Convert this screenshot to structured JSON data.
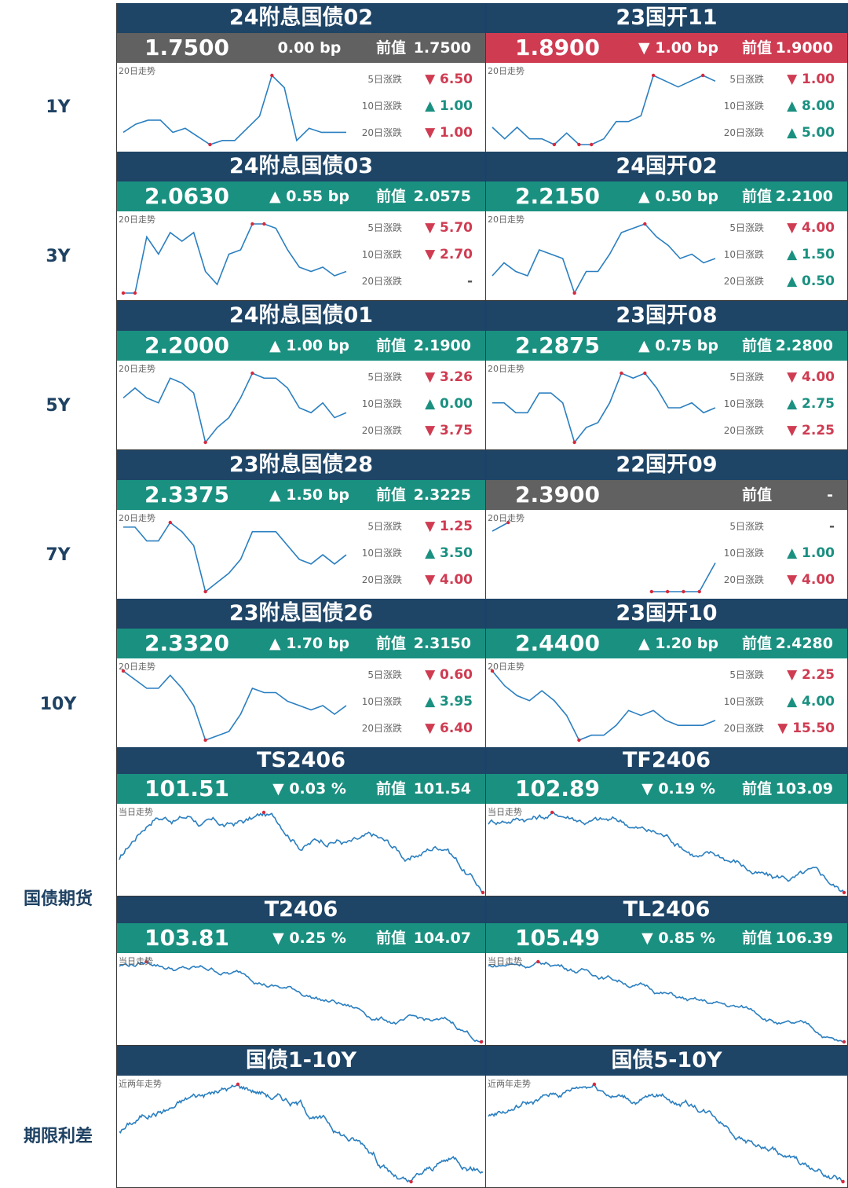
{
  "row_labels": [
    "1Y",
    "3Y",
    "5Y",
    "7Y",
    "10Y",
    "国债期货",
    "期限利差"
  ],
  "stats_labels": [
    "5日涨跌",
    "10日涨跌",
    "20日涨跌"
  ],
  "bond_cap": "20日走势",
  "fut_cap": "当日走势",
  "spr_cap": "近两年走势",
  "prev_label": "前值",
  "bonds": [
    {
      "title": "24附息国债02",
      "value": "1.7500",
      "change": "0.00 bp",
      "dir": "flat",
      "band": "gray",
      "prev": "1.7500",
      "stats": [
        {
          "v": "▼ 6.50",
          "d": "down"
        },
        {
          "v": "▲ 1.00",
          "d": "up"
        },
        {
          "v": "▼ 1.00",
          "d": "down"
        }
      ]
    },
    {
      "title": "23国开11",
      "value": "1.8900",
      "change": "▼ 1.00 bp",
      "dir": "down",
      "band": "red",
      "prev": "1.9000",
      "stats": [
        {
          "v": "▼ 1.00",
          "d": "down"
        },
        {
          "v": "▲ 8.00",
          "d": "up"
        },
        {
          "v": "▲ 5.00",
          "d": "up"
        }
      ]
    },
    {
      "title": "24附息国债03",
      "value": "2.0630",
      "change": "▲ 0.55 bp",
      "dir": "up",
      "band": "teal",
      "prev": "2.0575",
      "stats": [
        {
          "v": "▼ 5.70",
          "d": "down"
        },
        {
          "v": "▼ 2.70",
          "d": "down"
        },
        {
          "v": "-",
          "d": "flat"
        }
      ]
    },
    {
      "title": "24国开02",
      "value": "2.2150",
      "change": "▲ 0.50 bp",
      "dir": "up",
      "band": "teal",
      "prev": "2.2100",
      "stats": [
        {
          "v": "▼ 4.00",
          "d": "down"
        },
        {
          "v": "▲ 1.50",
          "d": "up"
        },
        {
          "v": "▲ 0.50",
          "d": "up"
        }
      ]
    },
    {
      "title": "24附息国债01",
      "value": "2.2000",
      "change": "▲ 1.00 bp",
      "dir": "up",
      "band": "teal",
      "prev": "2.1900",
      "stats": [
        {
          "v": "▼ 3.26",
          "d": "down"
        },
        {
          "v": "▲ 0.00",
          "d": "up"
        },
        {
          "v": "▼ 3.75",
          "d": "down"
        }
      ]
    },
    {
      "title": "23国开08",
      "value": "2.2875",
      "change": "▲ 0.75 bp",
      "dir": "up",
      "band": "teal",
      "prev": "2.2800",
      "stats": [
        {
          "v": "▼ 4.00",
          "d": "down"
        },
        {
          "v": "▲ 2.75",
          "d": "up"
        },
        {
          "v": "▼ 2.25",
          "d": "down"
        }
      ]
    },
    {
      "title": "23附息国债28",
      "value": "2.3375",
      "change": "▲ 1.50 bp",
      "dir": "up",
      "band": "teal",
      "prev": "2.3225",
      "stats": [
        {
          "v": "▼ 1.25",
          "d": "down"
        },
        {
          "v": "▲ 3.50",
          "d": "up"
        },
        {
          "v": "▼ 4.00",
          "d": "down"
        }
      ]
    },
    {
      "title": "22国开09",
      "value": "2.3900",
      "change": "",
      "dir": "flat",
      "band": "gray",
      "prev": "-",
      "stats": [
        {
          "v": "-",
          "d": "flat"
        },
        {
          "v": "▲ 1.00",
          "d": "up"
        },
        {
          "v": "▼ 4.00",
          "d": "down"
        }
      ]
    },
    {
      "title": "23附息国债26",
      "value": "2.3320",
      "change": "▲ 1.70 bp",
      "dir": "up",
      "band": "teal",
      "prev": "2.3150",
      "stats": [
        {
          "v": "▼ 0.60",
          "d": "down"
        },
        {
          "v": "▲ 3.95",
          "d": "up"
        },
        {
          "v": "▼ 6.40",
          "d": "down"
        }
      ]
    },
    {
      "title": "23国开10",
      "value": "2.4400",
      "change": "▲ 1.20 bp",
      "dir": "up",
      "band": "teal",
      "prev": "2.4280",
      "stats": [
        {
          "v": "▼ 2.25",
          "d": "down"
        },
        {
          "v": "▲ 4.00",
          "d": "up"
        },
        {
          "v": "▼ 15.50",
          "d": "down"
        }
      ]
    }
  ],
  "futures": [
    {
      "title": "TS2406",
      "value": "101.51",
      "change": "▼ 0.03 %",
      "band": "teal",
      "prev": "101.54"
    },
    {
      "title": "TF2406",
      "value": "102.89",
      "change": "▼ 0.19 %",
      "band": "teal",
      "prev": "103.09"
    },
    {
      "title": "T2406",
      "value": "103.81",
      "change": "▼ 0.25 %",
      "band": "teal",
      "prev": "104.07"
    },
    {
      "title": "TL2406",
      "value": "105.49",
      "change": "▼ 0.85 %",
      "band": "teal",
      "prev": "106.39"
    }
  ],
  "spreads": [
    {
      "title": "国债1-10Y"
    },
    {
      "title": "国债5-10Y"
    }
  ],
  "chart_data": [
    {
      "type": "line",
      "title": "24附息国债02",
      "x_label_text": "20日走势",
      "values": [
        12,
        14,
        15,
        15,
        12,
        13,
        11,
        9,
        10,
        10,
        13,
        16,
        26,
        23,
        10,
        13,
        12,
        12,
        12
      ],
      "markers": "extrema"
    },
    {
      "type": "line",
      "title": "23国开11",
      "values": [
        12,
        10,
        12,
        10,
        10,
        9,
        11,
        9,
        9,
        10,
        13,
        13,
        14,
        21,
        20,
        19,
        20,
        21,
        20
      ],
      "markers": "extrema"
    },
    {
      "type": "line",
      "title": "24附息国债03",
      "values": [
        5,
        5,
        18,
        14,
        19,
        17,
        19,
        10,
        7,
        14,
        15,
        21,
        21,
        20,
        15,
        11,
        10,
        11,
        9,
        10
      ],
      "markers": "extrema"
    },
    {
      "type": "line",
      "title": "24国开02",
      "values": [
        9,
        12,
        10,
        9,
        15,
        14,
        13,
        5,
        10,
        10,
        14,
        19,
        20,
        21,
        18,
        16,
        13,
        14,
        12,
        13
      ],
      "markers": "extrema"
    },
    {
      "type": "line",
      "title": "24附息国债01",
      "values": [
        16,
        18,
        16,
        15,
        20,
        19,
        17,
        7,
        10,
        12,
        16,
        21,
        20,
        20,
        18,
        14,
        13,
        15,
        12,
        13
      ],
      "markers": "extrema"
    },
    {
      "type": "line",
      "title": "23国开08",
      "values": [
        15,
        15,
        13,
        13,
        17,
        17,
        15,
        7,
        10,
        11,
        15,
        21,
        20,
        21,
        18,
        14,
        14,
        15,
        13,
        14
      ],
      "markers": "extrema"
    },
    {
      "type": "line",
      "title": "23附息国债28",
      "values": [
        20,
        20,
        17,
        17,
        21,
        19,
        16,
        6,
        8,
        10,
        13,
        19,
        19,
        19,
        16,
        13,
        12,
        14,
        12,
        14
      ],
      "markers": "extrema"
    },
    {
      "type": "line",
      "title": "22国开09",
      "values": [
        21,
        24,
        null,
        null,
        null,
        null,
        null,
        null,
        null,
        null,
        0,
        0,
        0,
        0,
        10
      ],
      "markers": "extrema"
    },
    {
      "type": "line",
      "title": "23附息国债26",
      "values": [
        22,
        20,
        18,
        18,
        21,
        18,
        14,
        6,
        7,
        8,
        12,
        18,
        17,
        17,
        15,
        14,
        13,
        14,
        12,
        14
      ],
      "markers": "extrema"
    },
    {
      "type": "line",
      "title": "23国开10",
      "values": [
        23,
        20,
        18,
        17,
        19,
        17,
        14,
        9,
        10,
        10,
        12,
        15,
        14,
        15,
        13,
        12,
        12,
        12,
        13
      ],
      "markers": "extrema"
    }
  ]
}
